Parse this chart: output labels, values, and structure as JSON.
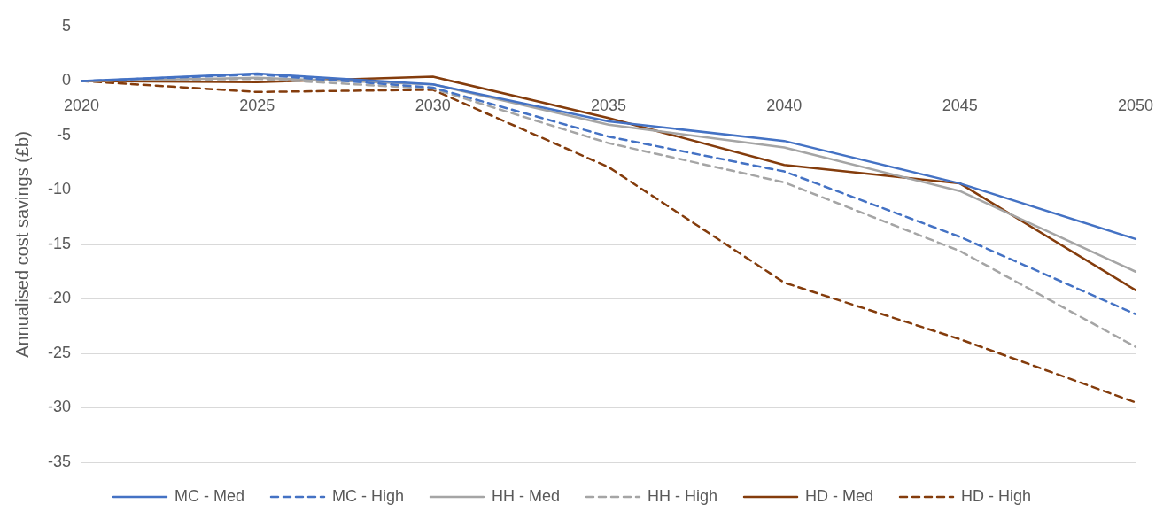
{
  "chart_data": {
    "type": "line",
    "ylabel": "Annualised cost savings (£b)",
    "categories": [
      "2020",
      "2025",
      "2030",
      "2035",
      "2040",
      "2045",
      "2050"
    ],
    "ylim": [
      -35,
      5
    ],
    "yticks": [
      -35,
      -30,
      -25,
      -20,
      -15,
      -10,
      -5,
      0,
      5
    ],
    "grid": "y",
    "legend": "bottom",
    "marker": "none",
    "series": [
      {
        "name": "MC - Med",
        "color": "#4472c4",
        "line_style": "solid",
        "values": [
          0,
          0.7,
          -0.3,
          -3.7,
          -5.5,
          -9.4,
          -14.5
        ]
      },
      {
        "name": "MC - High",
        "color": "#4472c4",
        "line_style": "dashed",
        "values": [
          0,
          0.6,
          -0.6,
          -5.1,
          -8.3,
          -14.3,
          -21.4
        ]
      },
      {
        "name": "HH - Med",
        "color": "#a5a5a5",
        "line_style": "solid",
        "values": [
          0,
          0.3,
          -0.3,
          -4.0,
          -6.1,
          -10.1,
          -17.5
        ]
      },
      {
        "name": "HH - High",
        "color": "#a5a5a5",
        "line_style": "dashed",
        "values": [
          0,
          0.2,
          -0.7,
          -5.7,
          -9.3,
          -15.6,
          -24.4
        ]
      },
      {
        "name": "HD - Med",
        "color": "#843c0c",
        "line_style": "solid",
        "values": [
          0,
          -0.1,
          0.4,
          -3.4,
          -7.7,
          -9.4,
          -19.2
        ]
      },
      {
        "name": "HD - High",
        "color": "#843c0c",
        "line_style": "dashed",
        "values": [
          0,
          -1.0,
          -0.8,
          -7.9,
          -18.5,
          -23.7,
          -29.5
        ]
      }
    ]
  }
}
